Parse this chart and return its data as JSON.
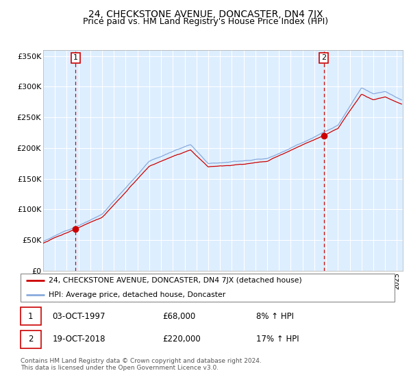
{
  "title": "24, CHECKSTONE AVENUE, DONCASTER, DN4 7JX",
  "subtitle": "Price paid vs. HM Land Registry's House Price Index (HPI)",
  "ylabel_ticks": [
    "£0",
    "£50K",
    "£100K",
    "£150K",
    "£200K",
    "£250K",
    "£300K",
    "£350K"
  ],
  "ytick_values": [
    0,
    50000,
    100000,
    150000,
    200000,
    250000,
    300000,
    350000
  ],
  "ylim_max": 360000,
  "xlim_start": 1995.0,
  "xlim_end": 2025.5,
  "sale1_year": 1997.75,
  "sale1_price": 68000,
  "sale2_year": 2018.8,
  "sale2_price": 220000,
  "line_color_red": "#cc0000",
  "line_color_blue": "#88aadd",
  "bg_color": "#ddeeff",
  "grid_color": "#ffffff",
  "legend1": "24, CHECKSTONE AVENUE, DONCASTER, DN4 7JX (detached house)",
  "legend2": "HPI: Average price, detached house, Doncaster",
  "copyright": "Contains HM Land Registry data © Crown copyright and database right 2024.\nThis data is licensed under the Open Government Licence v3.0.",
  "title_fontsize": 10,
  "subtitle_fontsize": 9
}
